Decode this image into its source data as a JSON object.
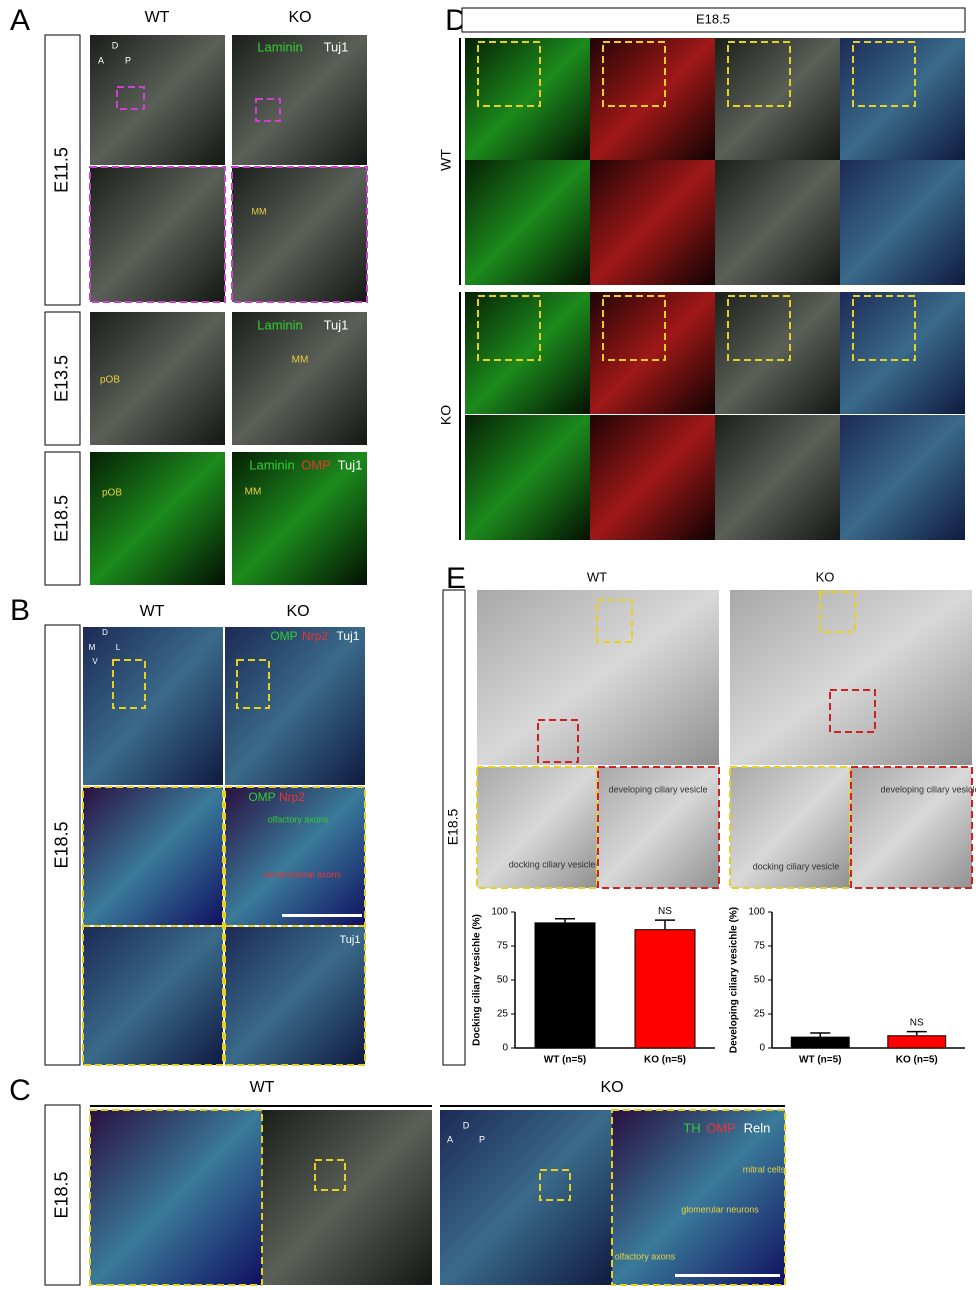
{
  "panels": {
    "A": {
      "label": "A",
      "columns": [
        "WT",
        "KO"
      ],
      "rows": [
        "E11.5",
        "E13.5",
        "E18.5"
      ],
      "annotations": [
        "D",
        "A",
        "P",
        "Laminin",
        "Tuj1",
        "MM",
        "Laminin",
        "Tuj1",
        "pOB",
        "MM",
        "Laminin",
        "OMP",
        "Tuj1",
        "pOB",
        "MM"
      ]
    },
    "B": {
      "label": "B",
      "columns": [
        "WT",
        "KO"
      ],
      "row": "E18.5",
      "annotations": [
        "D",
        "M",
        "L",
        "V",
        "OMP",
        "Nrp2",
        "Tuj1",
        "OMP",
        "Nrp2",
        "olfactory axons",
        "vomeronasal axons",
        "Tuj1"
      ]
    },
    "C": {
      "label": "C",
      "columns": [
        "WT",
        "KO"
      ],
      "row": "E18.5",
      "annotations": [
        "D",
        "A",
        "P",
        "TH",
        "OMP",
        "Reln",
        "mitral cells",
        "glomerular neurons",
        "olfactory axons"
      ]
    },
    "D": {
      "label": "D",
      "header": "E18.5",
      "rows": [
        "WT",
        "KO"
      ]
    },
    "E": {
      "label": "E",
      "columns": [
        "WT",
        "KO"
      ],
      "row": "E18.5",
      "annotations": [
        "docking ciliary vesicle",
        "developing ciliary vesicle",
        "docking ciliary vesicle",
        "developing ciliary vesicle"
      ]
    }
  },
  "chart_data": [
    {
      "type": "bar",
      "y_label": "Docking ciliary vesichle (%)",
      "categories": [
        "WT (n=5)",
        "KO (n=5)"
      ],
      "values": [
        92,
        87
      ],
      "errors": [
        3,
        7
      ],
      "colors": [
        "#000000",
        "#ff0000"
      ],
      "ylim": [
        0,
        100
      ],
      "yticks": [
        0,
        25,
        50,
        75,
        100
      ],
      "annotation": "NS"
    },
    {
      "type": "bar",
      "y_label": "Developing ciliary vesichle (%)",
      "categories": [
        "WT (n=5)",
        "KO (n=5)"
      ],
      "values": [
        8,
        9
      ],
      "errors": [
        3,
        3
      ],
      "colors": [
        "#000000",
        "#ff0000"
      ],
      "ylim": [
        0,
        100
      ],
      "yticks": [
        0,
        25,
        50,
        75,
        100
      ],
      "annotation": "NS"
    }
  ]
}
